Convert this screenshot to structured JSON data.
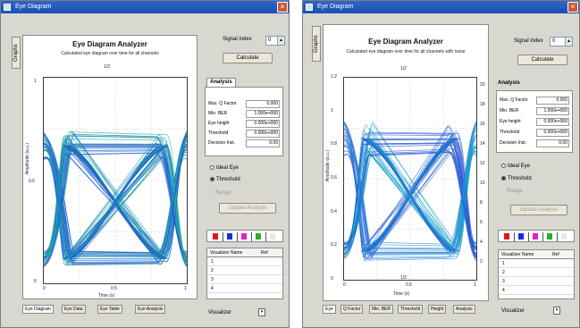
{
  "left": {
    "window_title": "Eye Diagram",
    "side_tab": "Graphs",
    "plot_title": "Eye Diagram Analyzer",
    "plot_subtitle": "Calculated eye diagram over time for all channels",
    "x_axis_label": "Time (s)",
    "y_axis_label": "Amplitude (a.u.)",
    "x_ticks": [
      "0",
      "0.5",
      "1"
    ],
    "y_ticks": [
      "1",
      "0.5",
      "0"
    ],
    "top_marker": "1/2",
    "signal_index_label": "Signal index",
    "signal_index_value": "0",
    "calculate_button": "Calculate",
    "analysis_tab": "Analysis",
    "metrics": [
      {
        "label": "Max. Q Factor",
        "value": "0.000"
      },
      {
        "label": "Min. BER",
        "value": "1.000e+000"
      },
      {
        "label": "Eye height",
        "value": "0.000e+000"
      },
      {
        "label": "Threshold",
        "value": "0.000e+000"
      },
      {
        "label": "Decision Inst.",
        "value": "0.00"
      }
    ],
    "radio_options": [
      {
        "label": "Ideal Eye",
        "checked": false
      },
      {
        "label": "Threshold",
        "checked": true
      }
    ],
    "disabled_label": "Range",
    "disabled_button": "Update Analysis",
    "swatch_colors": [
      "#e01818",
      "#1c2cd8",
      "#e020c8",
      "#28b028",
      "#e8e8e8"
    ],
    "list_headers": [
      "Visualizer Name",
      "Ref"
    ],
    "list_rows": [
      "1",
      "2",
      "3",
      "4"
    ],
    "bottom_label": "Visualizer",
    "bottom_tabs": [
      "Eye Diagram",
      "Eye Data",
      "Eye Table",
      "Eye Analysis"
    ]
  },
  "right": {
    "window_title": "Eye Diagram",
    "side_tab": "Graphs",
    "plot_title": "Eye Diagram Analyzer",
    "plot_subtitle": "Calculated eye diagram over time for all channels with noise",
    "x_axis_label": "Time (s)",
    "y_axis_label": "Amplitude (a.u.)",
    "x_ticks": [
      "0",
      "0.5",
      "1"
    ],
    "y_ticks": [
      "1.2",
      "1",
      "0.8",
      "0.6",
      "0.4",
      "0.2",
      "0"
    ],
    "right_ticks": [
      "20",
      "18",
      "16",
      "14",
      "12",
      "10",
      "8",
      "6",
      "4",
      "2"
    ],
    "top_marker": "1/2",
    "bottom_marker": "1/2",
    "signal_index_label": "Signal index",
    "signal_index_value": "0",
    "calculate_button": "Calculate",
    "analysis_heading": "Analysis",
    "metrics": [
      {
        "label": "Max. Q Factor",
        "value": "0.000"
      },
      {
        "label": "Min. BER",
        "value": "1.000e+000"
      },
      {
        "label": "Eye height",
        "value": "0.000e+000"
      },
      {
        "label": "Threshold",
        "value": "0.000e+000"
      },
      {
        "label": "Decision Inst.",
        "value": "0.00"
      }
    ],
    "radio_options": [
      {
        "label": "Ideal Eye",
        "checked": false
      },
      {
        "label": "Threshold",
        "checked": true
      }
    ],
    "disabled_label": "Range",
    "disabled_button": "Update Analysis",
    "swatch_colors": [
      "#e01818",
      "#1c2cd8",
      "#e020c8",
      "#28b028",
      "#e8e8e8"
    ],
    "list_headers": [
      "Visualizer Name",
      "Ref"
    ],
    "list_rows": [
      "1",
      "2",
      "3",
      "4"
    ],
    "bottom_label": "Visualizer",
    "bottom_tabs": [
      "Eye",
      "Q Factor",
      "Min. BER",
      "Threshold",
      "Height",
      "Analysis"
    ]
  }
}
